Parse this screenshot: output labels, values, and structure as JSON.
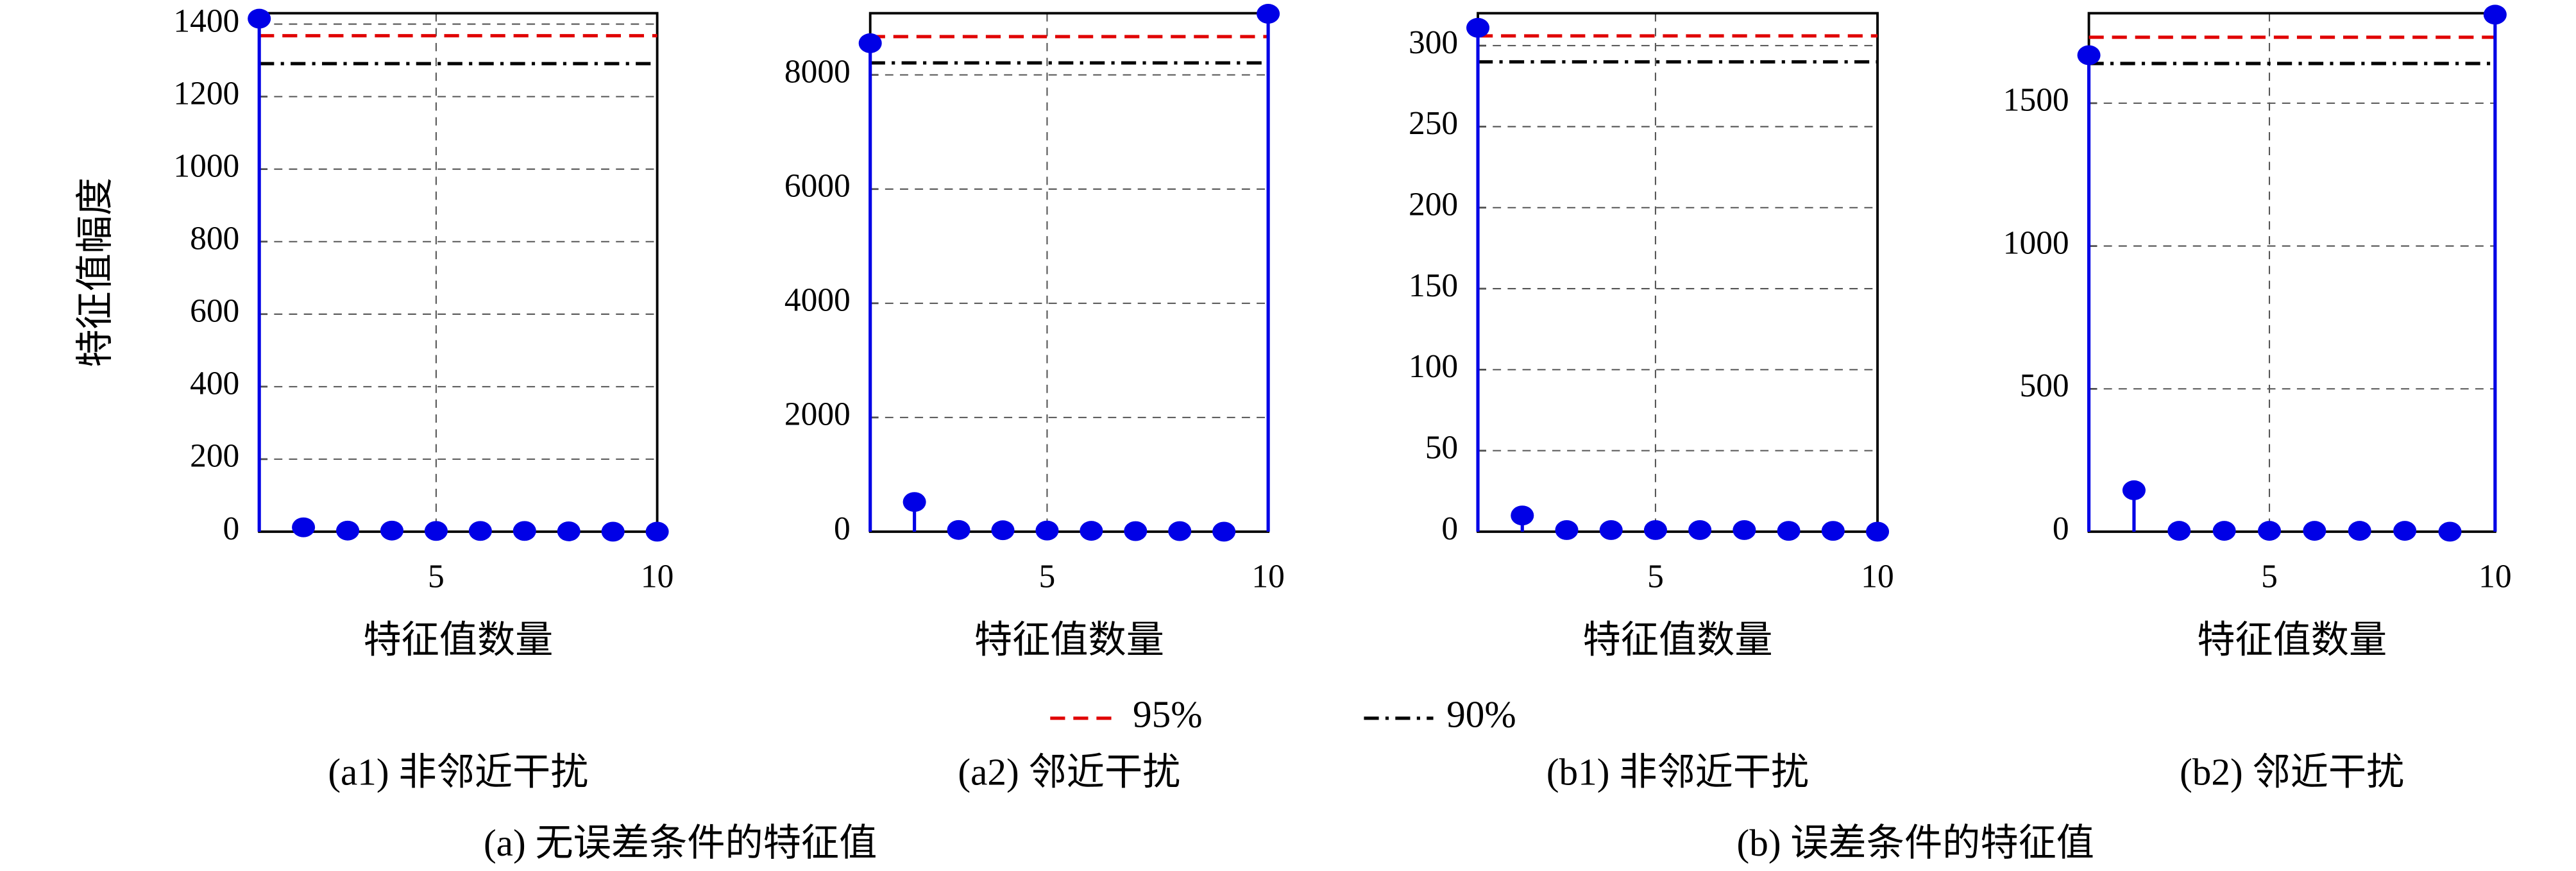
{
  "chart_data": [
    {
      "type": "stem",
      "x_label": "特征值数量",
      "y_label": "特征值幅度",
      "caption": "(a1) 非邻近干扰",
      "x": [
        1,
        2,
        3,
        4,
        5,
        6,
        7,
        8,
        9,
        10
      ],
      "xlim": [
        1,
        10
      ],
      "xticks": [
        5,
        10
      ],
      "ylim": [
        0,
        1430
      ],
      "yticks": [
        0,
        200,
        400,
        600,
        800,
        1000,
        1200,
        1400
      ],
      "series": [
        {
          "color": "#0000e6",
          "values": [
            1415,
            12,
            3,
            3,
            2,
            2,
            2,
            1,
            0,
            0
          ]
        }
      ],
      "reference_values": [
        1368,
        1291
      ],
      "grid": true
    },
    {
      "type": "stem",
      "x_label": "特征值数量",
      "caption": "(a2) 邻近干扰",
      "x": [
        1,
        2,
        3,
        4,
        5,
        6,
        7,
        8,
        9,
        10
      ],
      "xlim": [
        1,
        10
      ],
      "xticks": [
        5,
        10
      ],
      "ylim": [
        0,
        9080
      ],
      "yticks": [
        0,
        2000,
        4000,
        6000,
        8000
      ],
      "series": [
        {
          "color": "#0000e6",
          "values": [
            8555,
            520,
            30,
            25,
            20,
            15,
            10,
            10,
            0,
            9070
          ]
        }
      ],
      "reference_values": [
        8670,
        8210
      ],
      "grid": true
    },
    {
      "type": "stem",
      "x_label": "特征值数量",
      "caption": "(b1) 非邻近干扰",
      "x": [
        1,
        2,
        3,
        4,
        5,
        6,
        7,
        8,
        9,
        10
      ],
      "xlim": [
        1,
        10
      ],
      "xticks": [
        5,
        10
      ],
      "ylim": [
        0,
        320
      ],
      "yticks": [
        0,
        50,
        100,
        150,
        200,
        250,
        300
      ],
      "series": [
        {
          "color": "#0000e6",
          "values": [
            311,
            10,
            1,
            1,
            1,
            1,
            1,
            0.5,
            0.5,
            0
          ]
        }
      ],
      "reference_values": [
        306,
        290
      ],
      "grid": true
    },
    {
      "type": "stem",
      "x_label": "特征值数量",
      "caption": "(b2) 邻近干扰",
      "x": [
        1,
        2,
        3,
        4,
        5,
        6,
        7,
        8,
        9,
        10
      ],
      "xlim": [
        1,
        10
      ],
      "xticks": [
        5,
        10
      ],
      "ylim": [
        0,
        1815
      ],
      "yticks": [
        0,
        500,
        1000,
        1500
      ],
      "series": [
        {
          "color": "#0000e6",
          "values": [
            1668,
            145,
            3,
            3,
            3,
            3,
            3,
            3,
            0,
            1810
          ]
        }
      ],
      "reference_values": [
        1731,
        1639
      ],
      "grid": true
    }
  ],
  "legend": [
    {
      "name": "95%",
      "color": "#e00000",
      "style": "dashed"
    },
    {
      "name": "90%",
      "color": "#000000",
      "style": "dashdot"
    }
  ],
  "group_captions": [
    "(a) 无误差条件的特征值",
    "(b) 误差条件的特征值"
  ]
}
